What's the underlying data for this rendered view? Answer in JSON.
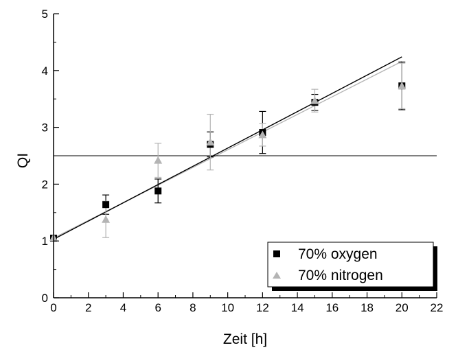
{
  "chart_data": {
    "type": "scatter",
    "xlabel": "Zeit [h]",
    "ylabel": "QI",
    "xlim": [
      0,
      22
    ],
    "ylim": [
      0,
      5
    ],
    "x_ticks": [
      0,
      2,
      4,
      6,
      8,
      10,
      12,
      14,
      16,
      18,
      20,
      22
    ],
    "y_ticks": [
      0,
      1,
      2,
      3,
      4,
      5
    ],
    "grid": false,
    "legend_position": "bottom-right",
    "reference_line": {
      "y": 2.5
    },
    "series": [
      {
        "name": "70% oxygen",
        "marker": "square",
        "color": "#000000",
        "x": [
          0,
          3,
          6,
          9,
          12,
          15,
          20
        ],
        "y": [
          1.05,
          1.64,
          1.88,
          2.7,
          2.91,
          3.44,
          3.73
        ],
        "err": [
          0.0,
          0.17,
          0.21,
          0.22,
          0.37,
          0.14,
          0.42
        ],
        "fit": {
          "x": [
            0,
            20
          ],
          "y": [
            1.03,
            4.24
          ]
        }
      },
      {
        "name": "70% nitrogen",
        "marker": "triangle",
        "color": "#b4b4b4",
        "x": [
          0,
          3,
          6,
          9,
          12,
          15,
          20
        ],
        "y": [
          1.06,
          1.38,
          2.42,
          2.74,
          2.87,
          3.47,
          3.73
        ],
        "err": [
          0.0,
          0.32,
          0.3,
          0.49,
          0.2,
          0.2,
          0.4
        ],
        "fit": {
          "x": [
            0,
            20
          ],
          "y": [
            1.05,
            4.16
          ]
        }
      }
    ]
  }
}
